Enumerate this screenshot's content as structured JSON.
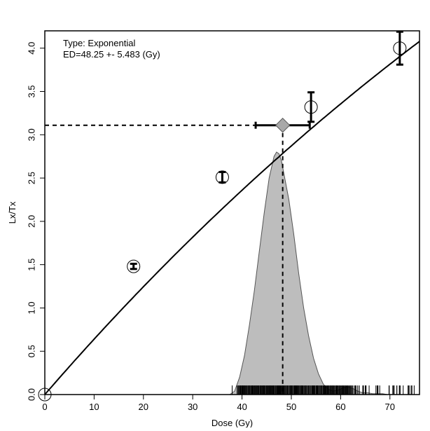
{
  "chart_data": {
    "type": "scatter",
    "xlabel": "Dose (Gy)",
    "ylabel": "Lx/Tx",
    "xlim": [
      0,
      76
    ],
    "ylim": [
      0,
      4.2
    ],
    "x_ticks": [
      0,
      10,
      20,
      30,
      40,
      50,
      60,
      70
    ],
    "y_ticks": [
      0.0,
      0.5,
      1.0,
      1.5,
      2.0,
      2.5,
      3.0,
      3.5,
      4.0
    ],
    "x_tick_labels": [
      "0",
      "10",
      "20",
      "30",
      "40",
      "50",
      "60",
      "70"
    ],
    "y_tick_labels": [
      "0.0",
      "0.5",
      "1.0",
      "1.5",
      "2.0",
      "2.5",
      "3.0",
      "3.5",
      "4.0"
    ],
    "annotations": [
      "Type: Exponential",
      "ED=48.25 +- 5.483 (Gy)"
    ],
    "grid": false,
    "points": [
      {
        "x": 0,
        "y": 0.0,
        "err": 0.0
      },
      {
        "x": 18,
        "y": 1.48,
        "err": 0.03
      },
      {
        "x": 36,
        "y": 2.51,
        "err": 0.06
      },
      {
        "x": 54,
        "y": 3.32,
        "err": 0.17
      },
      {
        "x": 72,
        "y": 4.0,
        "err": 0.19
      }
    ],
    "fit_curve": {
      "model": "exponential",
      "a": 11.84,
      "d": 180
    },
    "equivalent_dose": {
      "x": 48.25,
      "y": 3.11,
      "x_err": 5.483
    },
    "density": {
      "x": [
        37.5,
        38.5,
        39.5,
        40.5,
        41.5,
        42.5,
        43.5,
        44.5,
        45.5,
        46.5,
        47.0,
        47.5,
        48.0,
        48.5,
        49.5,
        50.5,
        51.5,
        52.5,
        53.5,
        54.5,
        55.5,
        56.5,
        57.5,
        58.5,
        59.5,
        60.5,
        61.5,
        62.5,
        63.5,
        64.5,
        65.5,
        66.5,
        67.5,
        68.5,
        69.5,
        70.5,
        71.5,
        72.5,
        73.5,
        74.5,
        75.5
      ],
      "y": [
        0.0,
        0.04,
        0.2,
        0.45,
        0.8,
        1.2,
        1.65,
        2.1,
        2.5,
        2.75,
        2.8,
        2.78,
        2.7,
        2.55,
        2.25,
        1.85,
        1.4,
        1.0,
        0.68,
        0.42,
        0.24,
        0.12,
        0.06,
        0.04,
        0.05,
        0.08,
        0.09,
        0.07,
        0.04,
        0.02,
        0.02,
        0.01,
        0.01,
        0.01,
        0.0,
        0.0,
        0.0,
        0.0,
        0.0,
        0.0,
        0.0
      ]
    },
    "rug": {
      "start": 38,
      "end": 75,
      "dense_start": 39,
      "dense_end": 62
    }
  }
}
